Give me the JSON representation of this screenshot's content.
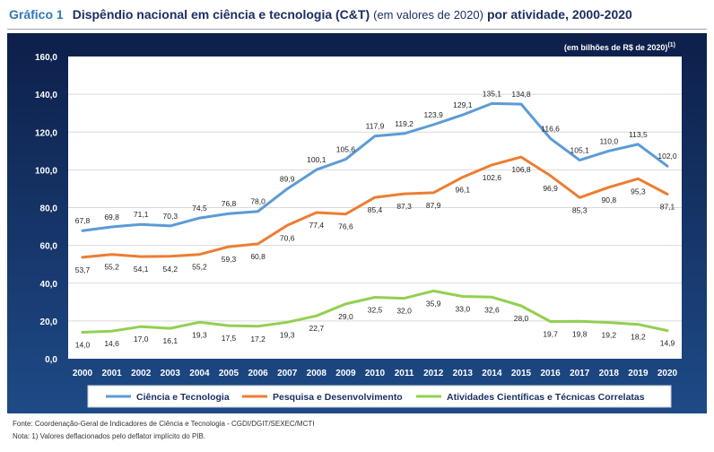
{
  "header": {
    "label": "Gráfico 1",
    "title_main": "Dispêndio nacional em ciência e tecnologia (C&T)",
    "title_paren": "(em valores de 2020)",
    "title_rest": "por atividade, 2000-2020"
  },
  "unit_note": "(em bilhões de R$ de 2020)",
  "unit_note_sup": "(1)",
  "footer": {
    "source": "Fonte: Coordenação-Geral de Indicadores de Ciência e Tecnologia - CGDI/DGIT/SEXEC/MCTI",
    "note": "Nota: 1) Valores deflacionados pelo deflator implícito do PIB."
  },
  "colors": {
    "background_top": "#0d1f4a",
    "background_bottom": "#1e4a86",
    "plot_area": "#ffffff"
  },
  "chart_data": {
    "type": "line",
    "x": [
      "2000",
      "2001",
      "2002",
      "2003",
      "2004",
      "2005",
      "2006",
      "2007",
      "2008",
      "2009",
      "2010",
      "2011",
      "2012",
      "2013",
      "2014",
      "2015",
      "2016",
      "2017",
      "2018",
      "2019",
      "2020"
    ],
    "ylim": [
      0,
      160
    ],
    "yticks": [
      "0,0",
      "20,0",
      "40,0",
      "60,0",
      "80,0",
      "100,0",
      "120,0",
      "140,0",
      "160,0"
    ],
    "grid": true,
    "legend_position": "bottom",
    "series": [
      {
        "name": "Ciência e Tecnologia",
        "color": "#5b9bd5",
        "values": [
          67.8,
          69.8,
          71.1,
          70.3,
          74.5,
          76.8,
          78.0,
          89.9,
          100.1,
          105.6,
          117.9,
          119.2,
          123.9,
          129.1,
          135.1,
          134.8,
          116.6,
          105.1,
          110.0,
          113.5,
          102.0
        ],
        "labels": [
          "67,8",
          "69,8",
          "71,1",
          "70,3",
          "74,5",
          "76,8",
          "78,0",
          "89,9",
          "100,1",
          "105,6",
          "117,9",
          "119,2",
          "123,9",
          "129,1",
          "135,1",
          "134,8",
          "116,6",
          "105,1",
          "110,0",
          "113,5",
          "102,0"
        ],
        "label_pos": [
          "above",
          "above",
          "above",
          "above",
          "above",
          "above",
          "above",
          "above",
          "above",
          "above",
          "above",
          "above",
          "above",
          "above",
          "above",
          "above",
          "above",
          "above",
          "above",
          "above",
          "above"
        ]
      },
      {
        "name": "Pesquisa e Desenvolvimento",
        "color": "#ed7d31",
        "values": [
          53.7,
          55.2,
          54.1,
          54.2,
          55.2,
          59.3,
          60.8,
          70.6,
          77.4,
          76.6,
          85.4,
          87.3,
          87.9,
          96.1,
          102.6,
          106.8,
          96.9,
          85.3,
          90.8,
          95.3,
          87.1
        ],
        "labels": [
          "53,7",
          "55,2",
          "54,1",
          "54,2",
          "55,2",
          "59,3",
          "60,8",
          "70,6",
          "77,4",
          "76,6",
          "85,4",
          "87,3",
          "87,9",
          "96,1",
          "102,6",
          "106,8",
          "96,9",
          "85,3",
          "90,8",
          "95,3",
          "87,1"
        ],
        "label_pos": [
          "below",
          "below",
          "below",
          "below",
          "below",
          "below",
          "below",
          "below",
          "below",
          "below",
          "below",
          "below",
          "below",
          "below",
          "below",
          "below",
          "below",
          "below",
          "below",
          "below",
          "below"
        ]
      },
      {
        "name": "Atividades Científicas e Técnicas Correlatas",
        "color": "#92d050",
        "values": [
          14.0,
          14.6,
          17.0,
          16.1,
          19.3,
          17.5,
          17.2,
          19.3,
          22.7,
          29.0,
          32.5,
          32.0,
          35.9,
          33.0,
          32.6,
          28.0,
          19.7,
          19.8,
          19.2,
          18.2,
          14.9
        ],
        "labels": [
          "14,0",
          "14,6",
          "17,0",
          "16,1",
          "19,3",
          "17,5",
          "17,2",
          "19,3",
          "22,7",
          "29,0",
          "32,5",
          "32,0",
          "35,9",
          "33,0",
          "32,6",
          "28,0",
          "19,7",
          "19,8",
          "19,2",
          "18,2",
          "14,9"
        ],
        "label_pos": [
          "below",
          "below",
          "below",
          "below",
          "below",
          "below",
          "below",
          "below",
          "below",
          "below",
          "below",
          "below",
          "below",
          "below",
          "below",
          "below",
          "below",
          "below",
          "below",
          "below",
          "below"
        ]
      }
    ]
  }
}
